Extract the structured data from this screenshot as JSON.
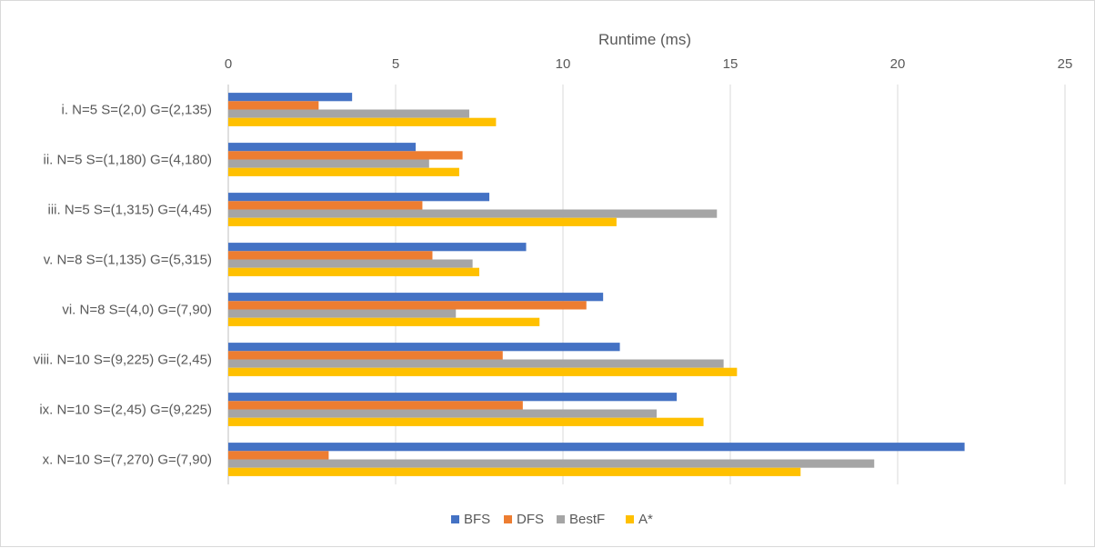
{
  "chart_data": {
    "type": "bar",
    "orientation": "horizontal",
    "title": "",
    "xlabel": "Runtime (ms)",
    "ylabel": "",
    "xlim": [
      0,
      25
    ],
    "ticks": [
      "0",
      "5",
      "10",
      "15",
      "20",
      "25"
    ],
    "grid": true,
    "legend_position": "bottom",
    "categories": [
      "i. N=5 S=(2,0) G=(2,135)",
      "ii. N=5 S=(1,180) G=(4,180)",
      "iii.  N=5 S=(1,315) G=(4,45)",
      "v. N=8 S=(1,135) G=(5,315)",
      "vi. N=8 S=(4,0) G=(7,90)",
      "viii.  N=10 S=(9,225) G=(2,45)",
      "ix. N=10 S=(2,45) G=(9,225)",
      "x. N=10 S=(7,270) G=(7,90)"
    ],
    "series": [
      {
        "name": "BFS",
        "color": "#4472c4",
        "values": [
          3.7,
          5.6,
          7.8,
          8.9,
          11.2,
          11.7,
          13.4,
          22.0
        ]
      },
      {
        "name": "DFS",
        "color": "#ed7d31",
        "values": [
          2.7,
          7.0,
          5.8,
          6.1,
          10.7,
          8.2,
          8.8,
          3.0
        ]
      },
      {
        "name": "BestF",
        "color": "#a5a5a5",
        "values": [
          7.2,
          6.0,
          14.6,
          7.3,
          6.8,
          14.8,
          12.8,
          19.3
        ]
      },
      {
        "name": "A*",
        "color": "#ffc000",
        "values": [
          8.0,
          6.9,
          11.6,
          7.5,
          9.3,
          15.2,
          14.2,
          17.1
        ]
      }
    ]
  }
}
